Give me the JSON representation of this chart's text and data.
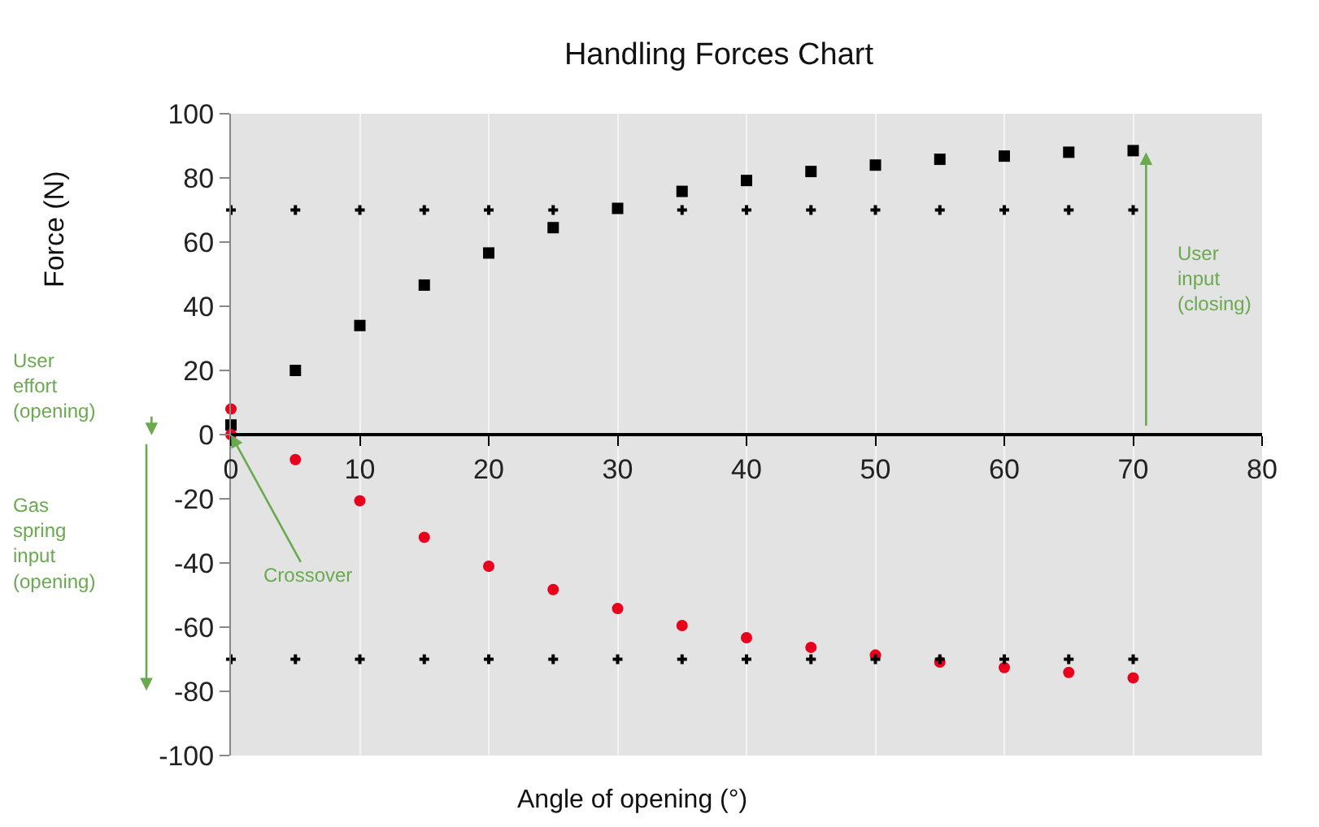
{
  "chart_data": {
    "type": "scatter",
    "title": "Handling Forces Chart",
    "xlabel": "Angle of opening (°)",
    "ylabel": "Force (N)",
    "x": [
      0,
      5,
      10,
      15,
      20,
      25,
      30,
      35,
      40,
      45,
      50,
      55,
      60,
      65,
      70
    ],
    "series": [
      {
        "color": "#000000",
        "marker": "square",
        "values": [
          3,
          20,
          34,
          46.6,
          56.6,
          64.5,
          70.5,
          75.8,
          79.2,
          82,
          84,
          85.8,
          86.8,
          88,
          88.5
        ]
      },
      {
        "color": "#e8001c",
        "marker": "circle",
        "x": [
          0,
          0,
          5,
          10,
          15,
          20,
          25,
          30,
          35,
          40,
          45,
          50,
          55,
          60,
          65,
          70
        ],
        "values": [
          8,
          0,
          -7.8,
          -20.6,
          -32,
          -41,
          -48.3,
          -54.2,
          -59.5,
          -63.3,
          -66.3,
          -68.7,
          -70.9,
          -72.6,
          -74.1,
          -75.8
        ]
      },
      {
        "color": "#000000",
        "marker": "cross",
        "values": [
          70,
          70,
          70,
          70,
          70,
          70,
          null,
          70,
          70,
          70,
          70,
          70,
          70,
          70,
          70
        ]
      },
      {
        "color": "#000000",
        "marker": "cross",
        "values": [
          -70,
          -70,
          -70,
          -70,
          -70,
          -70,
          -70,
          -70,
          -70,
          -70,
          -70,
          -70,
          -70,
          -70,
          -70
        ]
      }
    ],
    "xlim": [
      0,
      80
    ],
    "xticks": [
      0,
      10,
      20,
      30,
      40,
      50,
      60,
      70,
      80
    ],
    "ylim": [
      -100,
      100
    ],
    "yticks": [
      -100,
      -80,
      -60,
      -40,
      -20,
      0,
      20,
      40,
      60,
      80,
      100
    ],
    "grid": "x",
    "annotations": [
      "User effort (opening)",
      "Gas spring input (opening)",
      {
        "text": "Crossover",
        "x": 0,
        "y": 0
      },
      "User input (closing)"
    ]
  }
}
